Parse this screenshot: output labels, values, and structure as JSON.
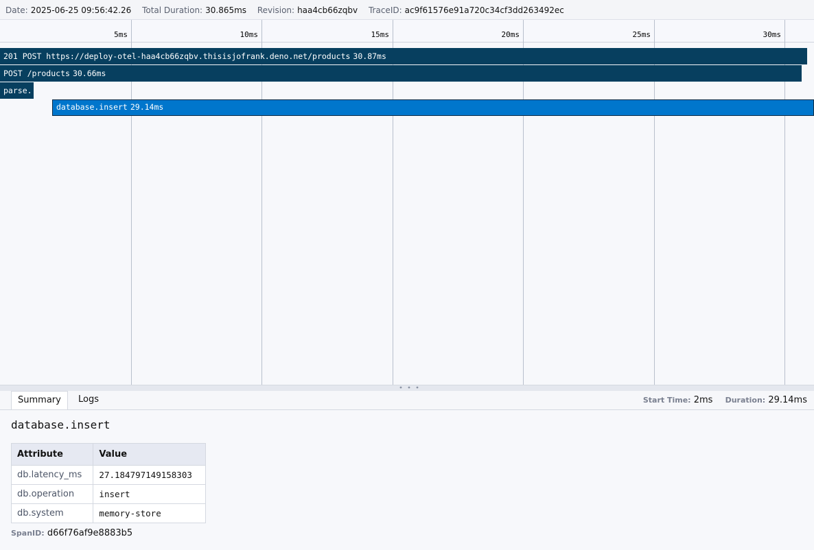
{
  "header": {
    "date_label": "Date:",
    "date": "2025-06-25 09:56:42.26",
    "duration_label": "Total Duration:",
    "duration": "30.865ms",
    "revision_label": "Revision:",
    "revision": "haa4cb66zqbv",
    "trace_label": "TraceID:",
    "trace_id": "ac9f61576e91a720c34cf3dd263492ec"
  },
  "timeline": {
    "ticks": [
      "5ms",
      "10ms",
      "15ms",
      "20ms",
      "25ms",
      "30ms"
    ],
    "spans": [
      {
        "name": "201 POST https://deploy-otel-haa4cb66zqbv.thisisjofrank.deno.net/products",
        "duration": "30.87ms"
      },
      {
        "name": "POST /products",
        "duration": "30.66ms"
      },
      {
        "name": "parse."
      },
      {
        "name": "database.insert",
        "duration": "29.14ms"
      }
    ]
  },
  "details": {
    "tabs": [
      "Summary",
      "Logs"
    ],
    "start_label": "Start Time:",
    "start": "2ms",
    "duration_label": "Duration:",
    "duration": "29.14ms",
    "span_name": "database.insert",
    "table": {
      "headers": [
        "Attribute",
        "Value"
      ],
      "rows": [
        [
          "db.latency_ms",
          "27.184797149158303"
        ],
        [
          "db.operation",
          "insert"
        ],
        [
          "db.system",
          "memory-store"
        ]
      ]
    },
    "span_id_label": "SpanID:",
    "span_id": "d66f76af9e8883b5"
  }
}
